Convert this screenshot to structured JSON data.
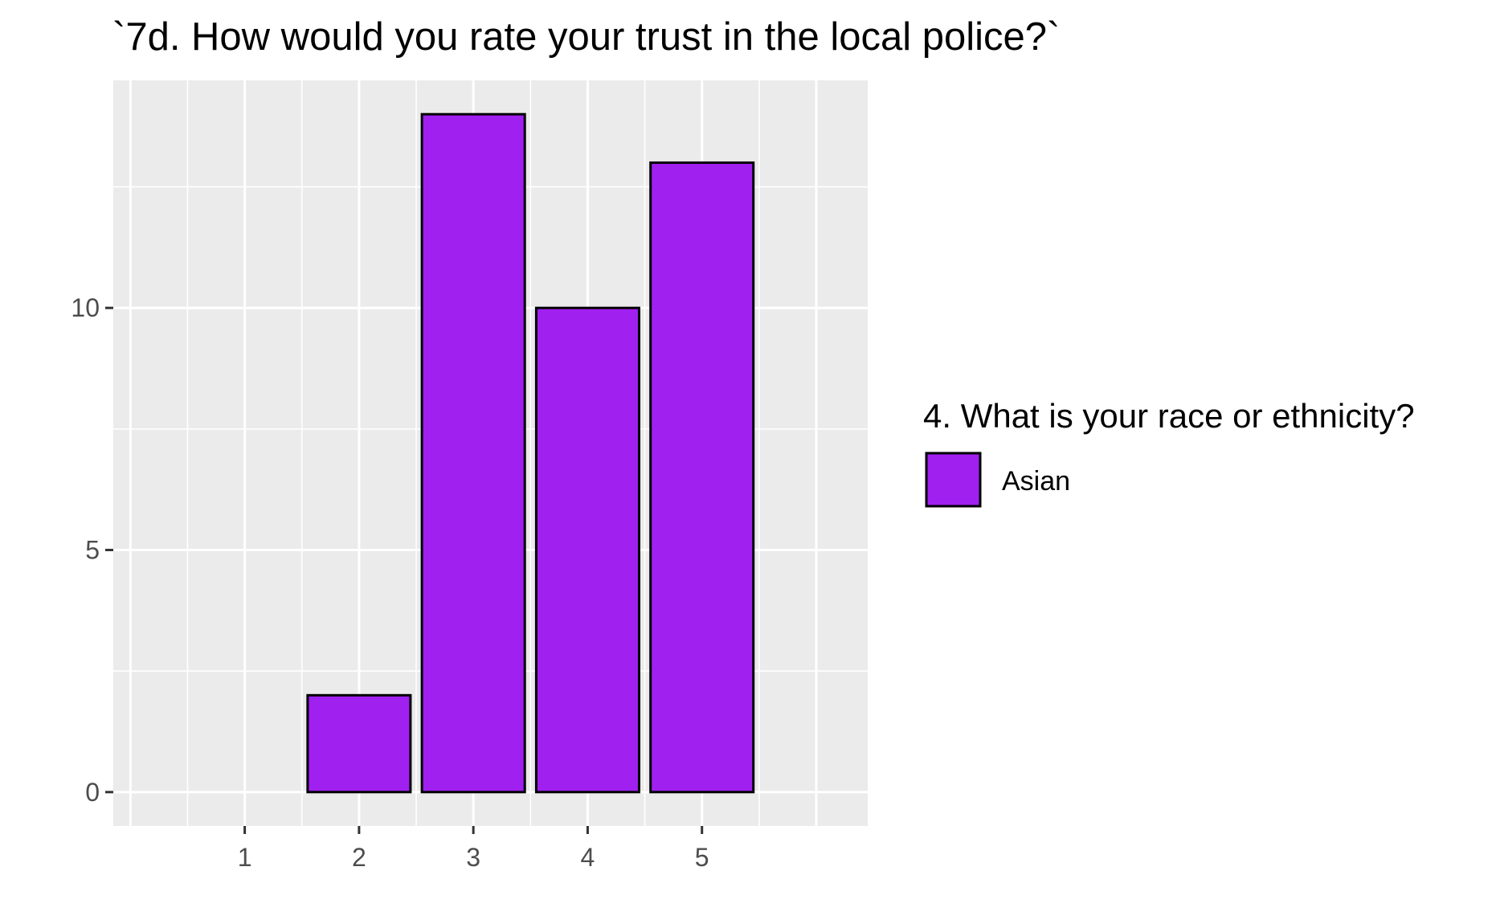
{
  "chart_data": {
    "type": "bar",
    "title": "`7d. How would you rate your trust in the local police?`",
    "xlabel": "",
    "ylabel": "",
    "categories": [
      "1",
      "2",
      "3",
      "4",
      "5"
    ],
    "series": [
      {
        "name": "Asian",
        "values": [
          0,
          2,
          14,
          10,
          13
        ]
      }
    ],
    "x_range": [
      -0.15,
      6.45
    ],
    "ylim": [
      -0.7,
      14.7
    ],
    "y_ticks": [
      0,
      5,
      10
    ],
    "y_tick_labels": [
      "0",
      "5",
      "10"
    ],
    "grid": true,
    "legend": {
      "title": "4. What is your race or ethnicity?",
      "position": "right",
      "entries": [
        {
          "label": "Asian",
          "color": "#A020F0"
        }
      ]
    },
    "colors": {
      "bar_fill": "#A020F0",
      "bar_stroke": "#000000",
      "panel_background": "#EBEBEB",
      "grid_line": "#FFFFFF",
      "tick_text": "#4D4D4D"
    }
  }
}
